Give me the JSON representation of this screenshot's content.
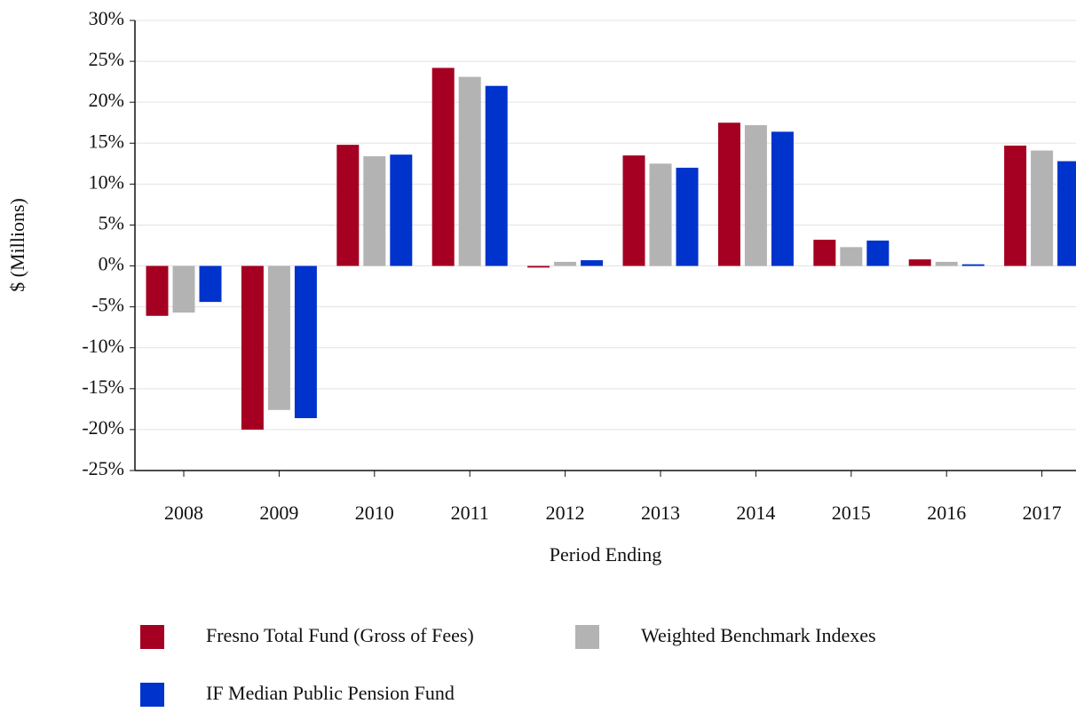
{
  "chart_data": {
    "type": "bar",
    "x_label": "Period Ending",
    "y_label": "$ (Millions)",
    "categories": [
      "2008",
      "2009",
      "2010",
      "2011",
      "2012",
      "2013",
      "2014",
      "2015",
      "2016",
      "2017"
    ],
    "series": [
      {
        "name": "Fresno Total Fund (Gross of Fees)",
        "color": "#a50021",
        "values": [
          -6.1,
          -20.0,
          14.8,
          24.2,
          -0.2,
          13.5,
          17.5,
          3.2,
          0.8,
          14.7
        ]
      },
      {
        "name": "Weighted Benchmark Indexes",
        "color": "#b3b3b3",
        "values": [
          -5.7,
          -17.6,
          13.4,
          23.1,
          0.5,
          12.5,
          17.2,
          2.3,
          0.5,
          14.1
        ]
      },
      {
        "name": "IF Median Public Pension Fund",
        "color": "#0033cc",
        "values": [
          -4.4,
          -18.6,
          13.6,
          22.0,
          0.7,
          12.0,
          16.4,
          3.1,
          0.2,
          12.8
        ]
      }
    ],
    "ylim": [
      -25,
      30
    ],
    "yticks": [
      {
        "value": -25,
        "label": "-25%"
      },
      {
        "value": -20,
        "label": "-20%"
      },
      {
        "value": -15,
        "label": "-15%"
      },
      {
        "value": -10,
        "label": "-10%"
      },
      {
        "value": -5,
        "label": "-5%"
      },
      {
        "value": 0,
        "label": "0%"
      },
      {
        "value": 5,
        "label": "5%"
      },
      {
        "value": 10,
        "label": "10%"
      },
      {
        "value": 15,
        "label": "15%"
      },
      {
        "value": 20,
        "label": "20%"
      },
      {
        "value": 25,
        "label": "25%"
      },
      {
        "value": 30,
        "label": "30%"
      }
    ],
    "grid": true,
    "legend": "bottom"
  }
}
